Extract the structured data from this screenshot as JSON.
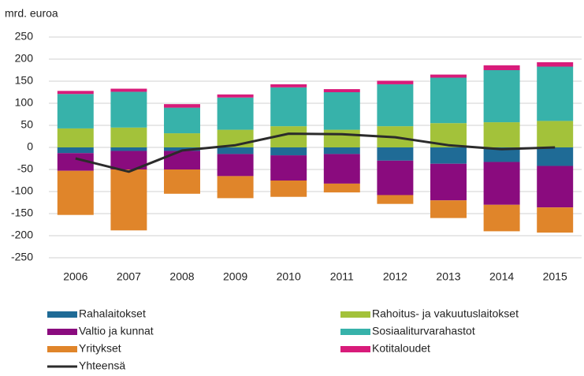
{
  "chart_data": {
    "type": "bar",
    "stacked": true,
    "y_label": "mrd. euroa",
    "categories": [
      "2006",
      "2007",
      "2008",
      "2009",
      "2010",
      "2011",
      "2012",
      "2013",
      "2014",
      "2015"
    ],
    "series": [
      {
        "name": "Rahalaitokset",
        "color": "#1f6b96",
        "values": [
          -13,
          -8,
          -8,
          -15,
          -18,
          -15,
          -30,
          -37,
          -33,
          -42
        ]
      },
      {
        "name": "Rahoitus- ja vakuutuslaitokset",
        "color": "#a3c23a",
        "values": [
          43,
          45,
          32,
          40,
          48,
          40,
          48,
          55,
          57,
          60
        ]
      },
      {
        "name": "Valtio ja kunnat",
        "color": "#8a0b7e",
        "values": [
          -40,
          -42,
          -42,
          -50,
          -57,
          -67,
          -78,
          -83,
          -97,
          -94
        ]
      },
      {
        "name": "Sosiaaliturvarahastot",
        "color": "#37b2aa",
        "values": [
          78,
          81,
          58,
          73,
          88,
          85,
          95,
          103,
          118,
          123
        ]
      },
      {
        "name": "Yritykset",
        "color": "#e0852a",
        "values": [
          -100,
          -138,
          -55,
          -50,
          -37,
          -20,
          -20,
          -40,
          -60,
          -57
        ]
      },
      {
        "name": "Kotitaloudet",
        "color": "#d81b7a",
        "values": [
          7,
          7,
          8,
          7,
          7,
          7,
          8,
          7,
          11,
          10
        ]
      },
      {
        "name": "Yhteensä",
        "color": "#2b2b2b",
        "type": "line",
        "values": [
          -25,
          -55,
          -7,
          5,
          31,
          30,
          23,
          5,
          -4,
          0
        ]
      }
    ],
    "ylim": [
      -250,
      250
    ],
    "yticks": [
      -250,
      -200,
      -150,
      -100,
      -50,
      0,
      50,
      100,
      150,
      200,
      250
    ],
    "grid": true
  }
}
